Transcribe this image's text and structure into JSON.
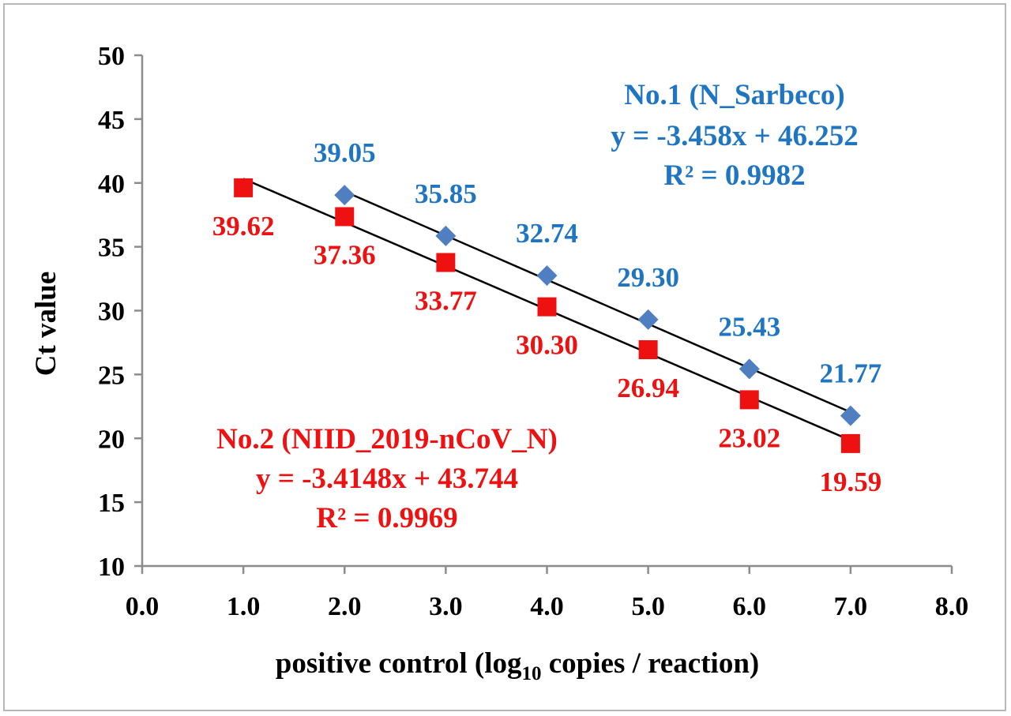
{
  "chart_data": {
    "type": "scatter",
    "ylabel": "Ct value",
    "xlabel_parts": {
      "before": "positive control (log",
      "sub": "10",
      "after": " copies / reaction)"
    },
    "xlim": [
      0,
      8
    ],
    "ylim": [
      10,
      50
    ],
    "x_ticks": [
      "0.0",
      "1.0",
      "2.0",
      "3.0",
      "4.0",
      "5.0",
      "6.0",
      "7.0",
      "8.0"
    ],
    "y_ticks": [
      "10",
      "15",
      "20",
      "25",
      "30",
      "35",
      "40",
      "45",
      "50"
    ],
    "grid": false,
    "series": [
      {
        "name": "No.1 (N_Sarbeco)",
        "marker": "diamond",
        "color": "#4f7fc0",
        "label_color": "#1f75c2",
        "x": [
          2,
          3,
          4,
          5,
          6,
          7
        ],
        "y": [
          39.05,
          35.85,
          32.74,
          29.3,
          25.43,
          21.77
        ],
        "point_labels": [
          "39.05",
          "35.85",
          "32.74",
          "29.30",
          "25.43",
          "21.77"
        ],
        "trendline": {
          "slope": -3.458,
          "intercept": 46.252,
          "x_range": [
            2,
            7
          ]
        },
        "equation": "y = -3.458x + 46.252",
        "r2": "R² = 0.9982"
      },
      {
        "name": "No.2 (NIID_2019-nCoV_N)",
        "marker": "square",
        "color": "#ee1111",
        "label_color": "#ee1111",
        "x": [
          1,
          2,
          3,
          4,
          5,
          6,
          7
        ],
        "y": [
          39.62,
          37.36,
          33.77,
          30.3,
          26.94,
          23.02,
          19.59
        ],
        "point_labels": [
          "39.62",
          "37.36",
          "33.77",
          "30.30",
          "26.94",
          "23.02",
          "19.59"
        ],
        "trendline": {
          "slope": -3.4148,
          "intercept": 43.744,
          "x_range": [
            1,
            7
          ]
        },
        "equation": "y = -3.4148x + 43.744",
        "r2": "R² = 0.9969"
      }
    ]
  }
}
